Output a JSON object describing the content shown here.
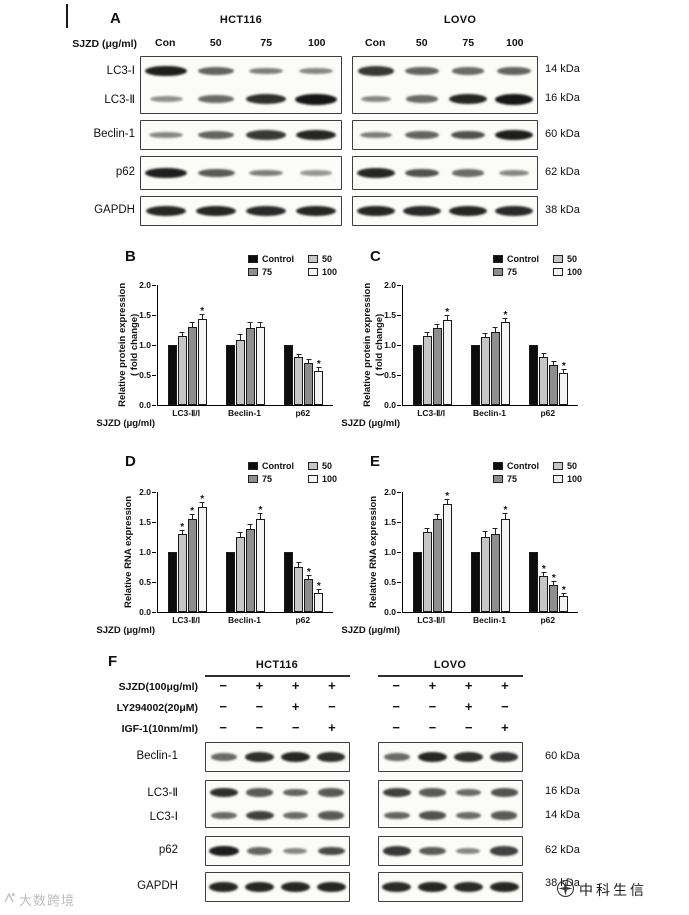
{
  "sig_symbol": "*",
  "panelA": {
    "label": "A",
    "cell_lines": [
      "HCT116",
      "LOVO"
    ],
    "dose_label": "SJZD (μg/ml)",
    "doses": [
      "Con",
      "50",
      "75",
      "100"
    ],
    "proteins": {
      "lc3_i": {
        "name": "LC3-Ⅰ",
        "kda": "14 kDa",
        "hct116": [
          0.95,
          0.55,
          0.4,
          0.35
        ],
        "lovo": [
          0.8,
          0.55,
          0.5,
          0.55
        ]
      },
      "lc3_ii": {
        "name": "LC3-Ⅱ",
        "kda": "16 kDa",
        "hct116": [
          0.3,
          0.5,
          0.85,
          1.0
        ],
        "lovo": [
          0.35,
          0.5,
          0.9,
          1.0
        ]
      },
      "beclin1": {
        "name": "Beclin-1",
        "kda": "60 kDa",
        "hct116": [
          0.35,
          0.55,
          0.8,
          0.9
        ],
        "lovo": [
          0.4,
          0.55,
          0.65,
          0.95
        ]
      },
      "p62": {
        "name": "p62",
        "kda": "62 kDa",
        "hct116": [
          0.95,
          0.6,
          0.4,
          0.25
        ],
        "lovo": [
          0.9,
          0.65,
          0.5,
          0.35
        ]
      },
      "gapdh": {
        "name": "GAPDH",
        "kda": "38 kDa",
        "hct116": [
          0.9,
          0.9,
          0.88,
          0.9
        ],
        "lovo": [
          0.9,
          0.88,
          0.9,
          0.88
        ]
      }
    }
  },
  "chart_data": [
    {
      "panel": "B",
      "type": "bar",
      "ylabel_lines": [
        "Relative protein expression",
        "( fold change)"
      ],
      "xlabel": "SJZD (μg/ml)",
      "ymax": 2.0,
      "yticks": [
        0,
        0.5,
        1.0,
        1.5,
        2.0
      ],
      "categories": [
        "LC3-Ⅱ/Ⅰ",
        "Beclin-1",
        "p62"
      ],
      "series": [
        {
          "name": "Control",
          "color": "#0d0d0d",
          "values": [
            1.0,
            1.0,
            1.0
          ],
          "err": [
            0,
            0,
            0
          ],
          "sig": [
            false,
            false,
            false
          ]
        },
        {
          "name": "50",
          "color": "#c6c6c6",
          "values": [
            1.15,
            1.08,
            0.8
          ],
          "err": [
            0.05,
            0.08,
            0.04
          ],
          "sig": [
            false,
            false,
            false
          ]
        },
        {
          "name": "75",
          "color": "#8e8e8e",
          "values": [
            1.3,
            1.28,
            0.7
          ],
          "err": [
            0.06,
            0.09,
            0.05
          ],
          "sig": [
            false,
            false,
            false
          ]
        },
        {
          "name": "100",
          "color": "#f4f4f4",
          "values": [
            1.43,
            1.3,
            0.56
          ],
          "err": [
            0.07,
            0.06,
            0.05
          ],
          "sig": [
            true,
            false,
            true
          ]
        }
      ]
    },
    {
      "panel": "C",
      "type": "bar",
      "ylabel_lines": [
        "Relative protein expression",
        "( fold change)"
      ],
      "xlabel": "SJZD (μg/ml)",
      "ymax": 2.0,
      "yticks": [
        0,
        0.5,
        1.0,
        1.5,
        2.0
      ],
      "categories": [
        "LC3-Ⅱ/Ⅰ",
        "Beclin-1",
        "p62"
      ],
      "series": [
        {
          "name": "Control",
          "color": "#0d0d0d",
          "values": [
            1.0,
            1.0,
            1.0
          ],
          "err": [
            0,
            0,
            0
          ],
          "sig": [
            false,
            false,
            false
          ]
        },
        {
          "name": "50",
          "color": "#c6c6c6",
          "values": [
            1.15,
            1.13,
            0.8
          ],
          "err": [
            0.05,
            0.05,
            0.05
          ],
          "sig": [
            false,
            false,
            false
          ]
        },
        {
          "name": "75",
          "color": "#8e8e8e",
          "values": [
            1.28,
            1.22,
            0.67
          ],
          "err": [
            0.06,
            0.07,
            0.05
          ],
          "sig": [
            false,
            false,
            false
          ]
        },
        {
          "name": "100",
          "color": "#f4f4f4",
          "values": [
            1.42,
            1.38,
            0.54
          ],
          "err": [
            0.06,
            0.05,
            0.04
          ],
          "sig": [
            true,
            true,
            true
          ]
        }
      ]
    },
    {
      "panel": "D",
      "type": "bar",
      "ylabel_lines": [
        "Relative RNA expression"
      ],
      "xlabel": "SJZD (μg/ml)",
      "ymax": 2.0,
      "yticks": [
        0,
        0.5,
        1.0,
        1.5,
        2.0
      ],
      "categories": [
        "LC3-Ⅱ/Ⅰ",
        "Beclin-1",
        "p62"
      ],
      "series": [
        {
          "name": "Control",
          "color": "#0d0d0d",
          "values": [
            1.0,
            1.0,
            1.0
          ],
          "err": [
            0,
            0,
            0
          ],
          "sig": [
            false,
            false,
            false
          ]
        },
        {
          "name": "50",
          "color": "#c6c6c6",
          "values": [
            1.3,
            1.25,
            0.75
          ],
          "err": [
            0.05,
            0.06,
            0.06
          ],
          "sig": [
            true,
            false,
            false
          ]
        },
        {
          "name": "75",
          "color": "#8e8e8e",
          "values": [
            1.55,
            1.38,
            0.55
          ],
          "err": [
            0.06,
            0.07,
            0.05
          ],
          "sig": [
            true,
            false,
            true
          ]
        },
        {
          "name": "100",
          "color": "#f4f4f4",
          "values": [
            1.75,
            1.55,
            0.32
          ],
          "err": [
            0.07,
            0.08,
            0.04
          ],
          "sig": [
            true,
            true,
            true
          ]
        }
      ]
    },
    {
      "panel": "E",
      "type": "bar",
      "ylabel_lines": [
        "Relative RNA expression"
      ],
      "xlabel": "SJZD (μg/ml)",
      "ymax": 2.0,
      "yticks": [
        0,
        0.5,
        1.0,
        1.5,
        2.0
      ],
      "categories": [
        "LC3-Ⅱ/Ⅰ",
        "Beclin-1",
        "p62"
      ],
      "series": [
        {
          "name": "Control",
          "color": "#0d0d0d",
          "values": [
            1.0,
            1.0,
            1.0
          ],
          "err": [
            0,
            0,
            0
          ],
          "sig": [
            false,
            false,
            false
          ]
        },
        {
          "name": "50",
          "color": "#c6c6c6",
          "values": [
            1.33,
            1.25,
            0.6
          ],
          "err": [
            0.06,
            0.08,
            0.05
          ],
          "sig": [
            false,
            false,
            true
          ]
        },
        {
          "name": "75",
          "color": "#8e8e8e",
          "values": [
            1.55,
            1.3,
            0.45
          ],
          "err": [
            0.07,
            0.09,
            0.05
          ],
          "sig": [
            false,
            false,
            true
          ]
        },
        {
          "name": "100",
          "color": "#f4f4f4",
          "values": [
            1.8,
            1.55,
            0.26
          ],
          "err": [
            0.06,
            0.08,
            0.04
          ],
          "sig": [
            true,
            true,
            true
          ]
        }
      ]
    }
  ],
  "panelF": {
    "label": "F",
    "cell_lines": [
      "HCT116",
      "LOVO"
    ],
    "treatments": [
      {
        "label": "SJZD(100μg/ml)",
        "hct116": [
          "−",
          "+",
          "+",
          "+"
        ],
        "lovo": [
          "−",
          "+",
          "+",
          "+"
        ]
      },
      {
        "label": "LY294002(20μM)",
        "hct116": [
          "−",
          "−",
          "+",
          "−"
        ],
        "lovo": [
          "−",
          "−",
          "+",
          "−"
        ]
      },
      {
        "label": "IGF-1(10nm/ml)",
        "hct116": [
          "−",
          "−",
          "−",
          "+"
        ],
        "lovo": [
          "−",
          "−",
          "−",
          "+"
        ]
      }
    ],
    "proteins": {
      "beclin1": {
        "name": "Beclin-1",
        "kda": "60 kDa",
        "hct116": [
          0.5,
          0.85,
          0.9,
          0.85
        ],
        "lovo": [
          0.5,
          0.9,
          0.85,
          0.8
        ]
      },
      "lc3_ii": {
        "name": "LC3-Ⅱ",
        "kda": "16 kDa",
        "hct116": [
          0.85,
          0.6,
          0.55,
          0.6
        ],
        "lovo": [
          0.75,
          0.6,
          0.5,
          0.65
        ]
      },
      "lc3_i": {
        "name": "LC3-Ⅰ",
        "kda": "14 kDa",
        "hct116": [
          0.5,
          0.75,
          0.5,
          0.6
        ],
        "lovo": [
          0.55,
          0.65,
          0.5,
          0.6
        ]
      },
      "p62": {
        "name": "p62",
        "kda": "62 kDa",
        "hct116": [
          0.95,
          0.55,
          0.35,
          0.7
        ],
        "lovo": [
          0.8,
          0.6,
          0.35,
          0.75
        ]
      },
      "gapdh": {
        "name": "GAPDH",
        "kda": "38 kDa",
        "hct116": [
          0.9,
          0.9,
          0.9,
          0.9
        ],
        "lovo": [
          0.88,
          0.9,
          0.88,
          0.9
        ]
      }
    }
  },
  "watermarks": {
    "left": "大数跨境",
    "right": "中科生信"
  }
}
